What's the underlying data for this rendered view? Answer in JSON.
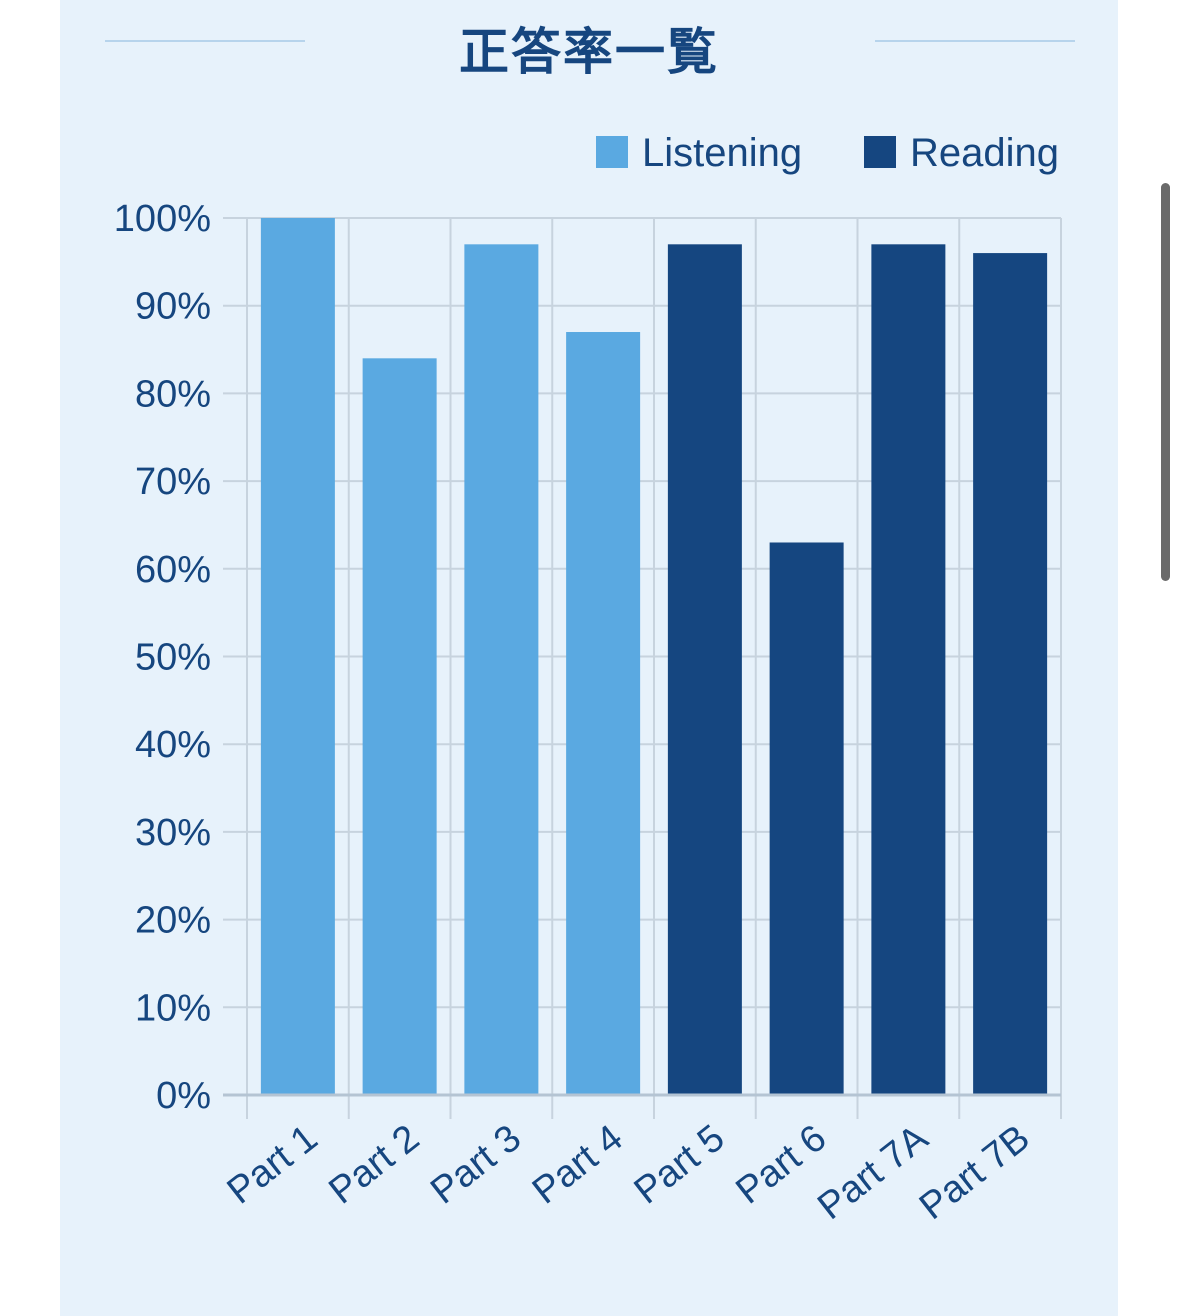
{
  "header": {
    "title": "正答率一覧"
  },
  "colors": {
    "listening": "#5aa9e1",
    "reading": "#154680",
    "grid": "#c7d3de",
    "text": "#16467f",
    "background": "#e7f2fb"
  },
  "chart_data": {
    "type": "bar",
    "title": "正答率一覧",
    "categories": [
      "Part 1",
      "Part 2",
      "Part 3",
      "Part 4",
      "Part 5",
      "Part 6",
      "Part 7A",
      "Part 7B"
    ],
    "values": [
      100,
      84,
      97,
      87,
      97,
      63,
      97,
      96
    ],
    "bar_groups": [
      "Listening",
      "Listening",
      "Listening",
      "Listening",
      "Reading",
      "Reading",
      "Reading",
      "Reading"
    ],
    "legend": [
      "Listening",
      "Reading"
    ],
    "legend_position": "top-right",
    "ylim": [
      0,
      100
    ],
    "y_ticks": [
      0,
      10,
      20,
      30,
      40,
      50,
      60,
      70,
      80,
      90,
      100
    ],
    "y_tick_format": "%",
    "grid": true,
    "xlabel": "",
    "ylabel": ""
  }
}
